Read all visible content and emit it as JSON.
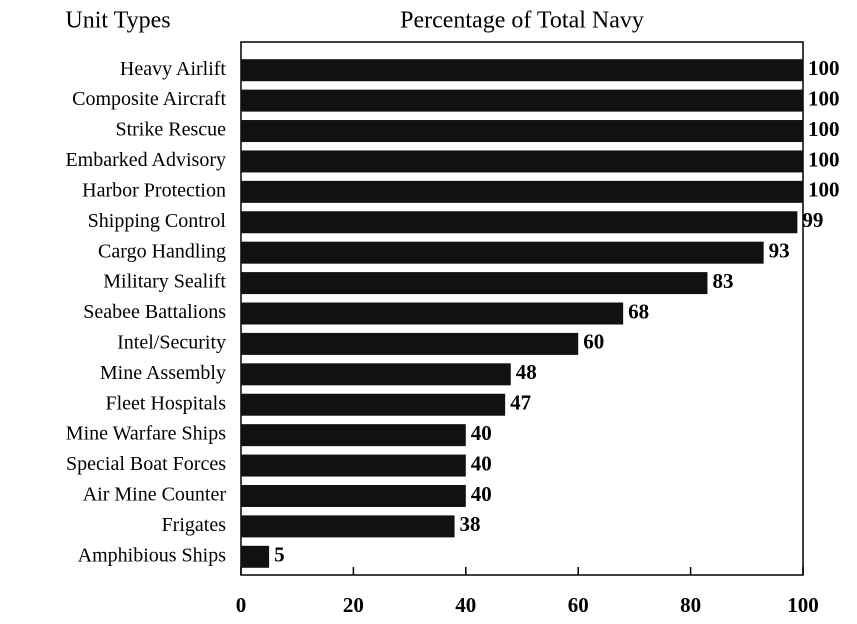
{
  "chart_data": {
    "type": "hbar",
    "title": "Percentage of Total Navy",
    "ylabel": "Unit Types",
    "categories": [
      "Heavy Airlift",
      "Composite Aircraft",
      "Strike Rescue",
      "Embarked Advisory",
      "Harbor Protection",
      "Shipping Control",
      "Cargo Handling",
      "Military Sealift",
      "Seabee Battalions",
      "Intel/Security",
      "Mine Assembly",
      "Fleet Hospitals",
      "Mine Warfare Ships",
      "Special Boat Forces",
      "Air Mine Counter",
      "Frigates",
      "Amphibious Ships"
    ],
    "values": [
      100,
      100,
      100,
      100,
      100,
      99,
      93,
      83,
      68,
      60,
      48,
      47,
      40,
      40,
      40,
      38,
      5
    ],
    "color": "#111111",
    "xlim": [
      0,
      100
    ],
    "xticks": [
      0,
      20,
      40,
      60,
      80,
      100
    ]
  }
}
